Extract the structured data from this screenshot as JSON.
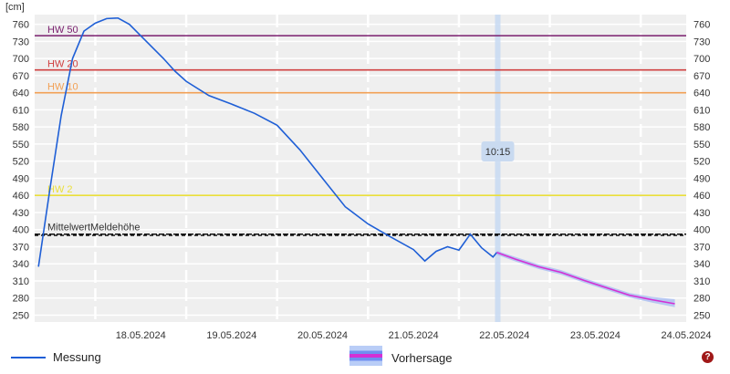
{
  "unit_label": "[cm]",
  "legend": {
    "measurement": "Messung",
    "forecast": "Vorhersage"
  },
  "help_icon_glyph": "?",
  "colors": {
    "measurement": "#1f5fd6",
    "forecast": "#d42fd4",
    "forecast_band": "#9fb6f2",
    "plot_bg": "#efefef",
    "hw50": "#7a1f6e",
    "hw20": "#d04040",
    "hw10": "#f2a055",
    "hw2": "#eadf3a"
  },
  "chart_data": {
    "type": "line",
    "y_ticks": [
      250,
      280,
      310,
      340,
      370,
      400,
      430,
      460,
      490,
      520,
      550,
      580,
      610,
      640,
      670,
      700,
      730,
      760
    ],
    "ylim": [
      238,
      777
    ],
    "xlim": [
      "17.05.2024 08:00",
      "24.05.2024 12:00"
    ],
    "x_ticks": [
      "18.05.2024",
      "19.05.2024",
      "20.05.2024",
      "21.05.2024",
      "22.05.2024",
      "23.05.2024",
      "24.05.2024"
    ],
    "thresholds": [
      {
        "label": "HW 50",
        "value": 740,
        "color_key": "hw50"
      },
      {
        "label": "HW 20",
        "value": 680,
        "color_key": "hw20"
      },
      {
        "label": "HW 10",
        "value": 640,
        "color_key": "hw10"
      },
      {
        "label": "HW 2",
        "value": 460,
        "color_key": "hw2"
      }
    ],
    "reference_lines_label": "MittelwertMeldehöhe",
    "reference_lines": [
      392,
      390
    ],
    "now_marker": {
      "label": "10:15",
      "x": "22.05.2024 10:15"
    },
    "series": [
      {
        "name": "Messung",
        "color_key": "measurement",
        "x": [
          "17.05.2024 09:00",
          "17.05.2024 12:00",
          "17.05.2024 15:00",
          "17.05.2024 18:00",
          "17.05.2024 21:00",
          "18.05.2024 00:00",
          "18.05.2024 03:00",
          "18.05.2024 06:00",
          "18.05.2024 09:00",
          "18.05.2024 12:00",
          "18.05.2024 15:00",
          "18.05.2024 18:00",
          "18.05.2024 21:00",
          "19.05.2024 00:00",
          "19.05.2024 06:00",
          "19.05.2024 12:00",
          "19.05.2024 18:00",
          "20.05.2024 00:00",
          "20.05.2024 06:00",
          "20.05.2024 12:00",
          "20.05.2024 18:00",
          "21.05.2024 00:00",
          "21.05.2024 06:00",
          "21.05.2024 12:00",
          "21.05.2024 15:00",
          "21.05.2024 18:00",
          "21.05.2024 21:00",
          "22.05.2024 00:00",
          "22.05.2024 03:00",
          "22.05.2024 06:00",
          "22.05.2024 09:00",
          "22.05.2024 10:00"
        ],
        "y": [
          335,
          470,
          600,
          700,
          748,
          762,
          770,
          771,
          760,
          740,
          720,
          700,
          678,
          660,
          635,
          620,
          604,
          583,
          540,
          490,
          440,
          410,
          387,
          365,
          345,
          362,
          370,
          364,
          392,
          368,
          352,
          360
        ]
      },
      {
        "name": "Vorhersage",
        "color_key": "forecast",
        "x": [
          "22.05.2024 10:00",
          "22.05.2024 15:00",
          "22.05.2024 21:00",
          "23.05.2024 03:00",
          "23.05.2024 09:00",
          "23.05.2024 15:00",
          "23.05.2024 21:00",
          "24.05.2024 03:00",
          "24.05.2024 09:00"
        ],
        "y": [
          360,
          348,
          335,
          325,
          311,
          298,
          285,
          277,
          270
        ],
        "band_lower": [
          356,
          344,
          331,
          321,
          307,
          294,
          281,
          272,
          264
        ],
        "band_upper": [
          363,
          352,
          339,
          329,
          315,
          302,
          289,
          282,
          278
        ]
      }
    ]
  }
}
